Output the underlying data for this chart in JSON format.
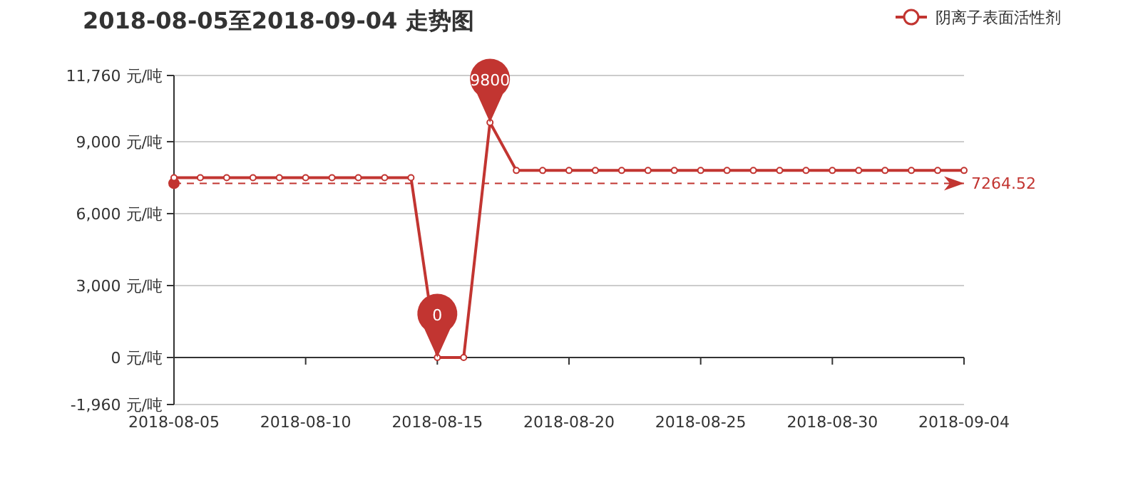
{
  "chart_data": {
    "type": "line",
    "title": "2018-08-05至2018-09-04 走势图",
    "x": [
      "2018-08-05",
      "2018-08-06",
      "2018-08-07",
      "2018-08-08",
      "2018-08-09",
      "2018-08-10",
      "2018-08-11",
      "2018-08-12",
      "2018-08-13",
      "2018-08-14",
      "2018-08-15",
      "2018-08-16",
      "2018-08-17",
      "2018-08-18",
      "2018-08-19",
      "2018-08-20",
      "2018-08-21",
      "2018-08-22",
      "2018-08-23",
      "2018-08-24",
      "2018-08-25",
      "2018-08-26",
      "2018-08-27",
      "2018-08-28",
      "2018-08-29",
      "2018-08-30",
      "2018-08-31",
      "2018-09-01",
      "2018-09-02",
      "2018-09-03",
      "2018-09-04"
    ],
    "series": [
      {
        "name": "阴离子表面活性剂",
        "color": "#c23531",
        "values": [
          7500,
          7500,
          7500,
          7500,
          7500,
          7500,
          7500,
          7500,
          7500,
          7500,
          0,
          0,
          9800,
          7800,
          7800,
          7800,
          7800,
          7800,
          7800,
          7800,
          7800,
          7800,
          7800,
          7800,
          7800,
          7800,
          7800,
          7800,
          7800,
          7800,
          7800
        ]
      }
    ],
    "xlim": [
      "2018-08-05",
      "2018-09-04"
    ],
    "xticks": [
      "2018-08-05",
      "2018-08-10",
      "2018-08-15",
      "2018-08-20",
      "2018-08-25",
      "2018-08-30",
      "2018-09-04"
    ],
    "ylim": [
      -1960,
      11760
    ],
    "yticks": [
      {
        "value": -1960,
        "label": "-1,960 元/吨"
      },
      {
        "value": 0,
        "label": "0 元/吨"
      },
      {
        "value": 3000,
        "label": "3,000 元/吨"
      },
      {
        "value": 6000,
        "label": "6,000 元/吨"
      },
      {
        "value": 9000,
        "label": "9,000 元/吨"
      },
      {
        "value": 11760,
        "label": "11,760 元/吨"
      }
    ],
    "annotations": [
      {
        "text": "9800",
        "x": "2018-08-17",
        "y": 9800
      },
      {
        "text": "0",
        "x": "2018-08-15",
        "y": 0
      }
    ],
    "ref_lines": [
      {
        "axis": "y",
        "value": 7264.52,
        "label": "7264.52",
        "line_style": "dashed"
      }
    ],
    "grid": "y",
    "legend": "top right",
    "marker": "circle",
    "line_style": "solid"
  }
}
